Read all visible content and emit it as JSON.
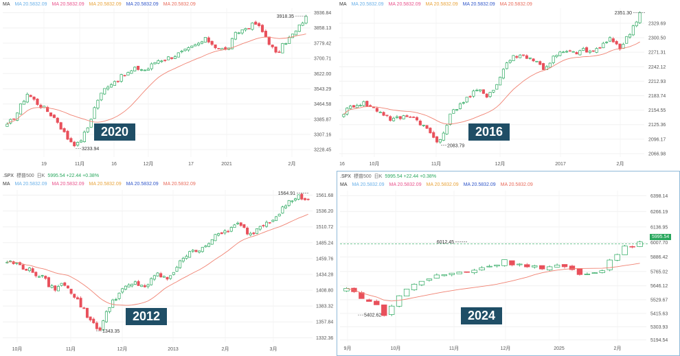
{
  "ma_legend": {
    "label": "MA",
    "items": [
      {
        "text": "MA  20.5832.09",
        "color": "#6ab0e8"
      },
      {
        "text": "MA  20.5832.09",
        "color": "#e8508a"
      },
      {
        "text": "MA  20.5832.09",
        "color": "#e8a33a"
      },
      {
        "text": "MA  20.5832.09",
        "color": "#2f55c8"
      },
      {
        "text": "MA  20.5832.09",
        "color": "#e86a5a"
      }
    ]
  },
  "header_bar": {
    "symbol": ".SPX",
    "name": "標普500",
    "period": "日K",
    "quote": "5995.54 +22.44 +0.38%"
  },
  "colors": {
    "up": "#26a65b",
    "down": "#e8505b",
    "ma_line": "#f08070",
    "year_label_bg": "#1f4e66"
  },
  "chart_data": [
    {
      "type": "candlestick",
      "year_label": "2020",
      "ylim": [
        3190,
        3960
      ],
      "y_ticks": [
        "3936.84",
        "3858.13",
        "3779.42",
        "3700.71",
        "3622.00",
        "3543.29",
        "3464.58",
        "3385.87",
        "3307.16",
        "3228.45"
      ],
      "x_ticks": [
        "19",
        "11月",
        "16",
        "12月",
        "17",
        "2021",
        "2月"
      ],
      "annotations": [
        {
          "text": "3918.35",
          "kind": "high"
        },
        {
          "text": "3233.94",
          "kind": "low"
        }
      ],
      "anchors": [
        3350,
        3420,
        3520,
        3470,
        3430,
        3380,
        3290,
        3250,
        3330,
        3480,
        3560,
        3590,
        3620,
        3650,
        3640,
        3690,
        3700,
        3720,
        3740,
        3770,
        3800,
        3760,
        3740,
        3830,
        3860,
        3880,
        3810,
        3720,
        3790,
        3840,
        3918
      ]
    },
    {
      "type": "candlestick",
      "year_label": "2016",
      "ylim": [
        2060,
        2360
      ],
      "y_ticks": [
        "2329.69",
        "2300.50",
        "2271.31",
        "2242.12",
        "2212.93",
        "2183.74",
        "2154.55",
        "2125.36",
        "2096.17",
        "2066.98"
      ],
      "x_ticks": [
        "16",
        "10月",
        "11月",
        "12月",
        "2017",
        "2月"
      ],
      "annotations": [
        {
          "text": "2351.30",
          "kind": "high"
        },
        {
          "text": "2083.79",
          "kind": "low"
        }
      ],
      "anchors": [
        2150,
        2165,
        2170,
        2160,
        2150,
        2135,
        2140,
        2145,
        2130,
        2110,
        2085,
        2140,
        2165,
        2180,
        2195,
        2185,
        2205,
        2250,
        2265,
        2265,
        2255,
        2238,
        2262,
        2272,
        2270,
        2275,
        2272,
        2284,
        2298,
        2280,
        2312,
        2351
      ]
    },
    {
      "type": "candlestick",
      "year_label": "2012",
      "ylim": [
        1325,
        1570
      ],
      "y_ticks": [
        "1561.68",
        "1536.20",
        "1510.72",
        "1485.24",
        "1459.76",
        "1434.28",
        "1408.80",
        "1383.32",
        "1357.84",
        "1332.36"
      ],
      "x_ticks": [
        "10月",
        "11月",
        "12月",
        "2013",
        "2月",
        "3月"
      ],
      "annotations": [
        {
          "text": "1564.91",
          "kind": "high"
        },
        {
          "text": "1343.35",
          "kind": "low"
        }
      ],
      "anchors": [
        1455,
        1450,
        1440,
        1430,
        1410,
        1420,
        1395,
        1365,
        1345,
        1390,
        1410,
        1420,
        1415,
        1435,
        1425,
        1460,
        1470,
        1480,
        1495,
        1505,
        1515,
        1498,
        1515,
        1525,
        1545,
        1560,
        1555
      ]
    },
    {
      "type": "candlestick",
      "year_label": "2024",
      "ylim": [
        5180,
        6440
      ],
      "y_ticks": [
        "6398.14",
        "6266.19",
        "6136.95",
        "6007.70",
        "5886.42",
        "5765.02",
        "5646.12",
        "5529.67",
        "5415.63",
        "5303.93",
        "5194.54"
      ],
      "x_ticks": [
        "9月",
        "10月",
        "11月",
        "12月",
        "2025",
        "2月"
      ],
      "annotations": [
        {
          "text": "6012.45",
          "kind": "high"
        },
        {
          "text": "5402.62",
          "kind": "low"
        }
      ],
      "current_price": "5995.54",
      "anchors": [
        5620,
        5540,
        5408,
        5620,
        5700,
        5740,
        5760,
        5800,
        5850,
        5830,
        5790,
        5810,
        5720,
        5780,
        5940,
        6012
      ]
    }
  ]
}
